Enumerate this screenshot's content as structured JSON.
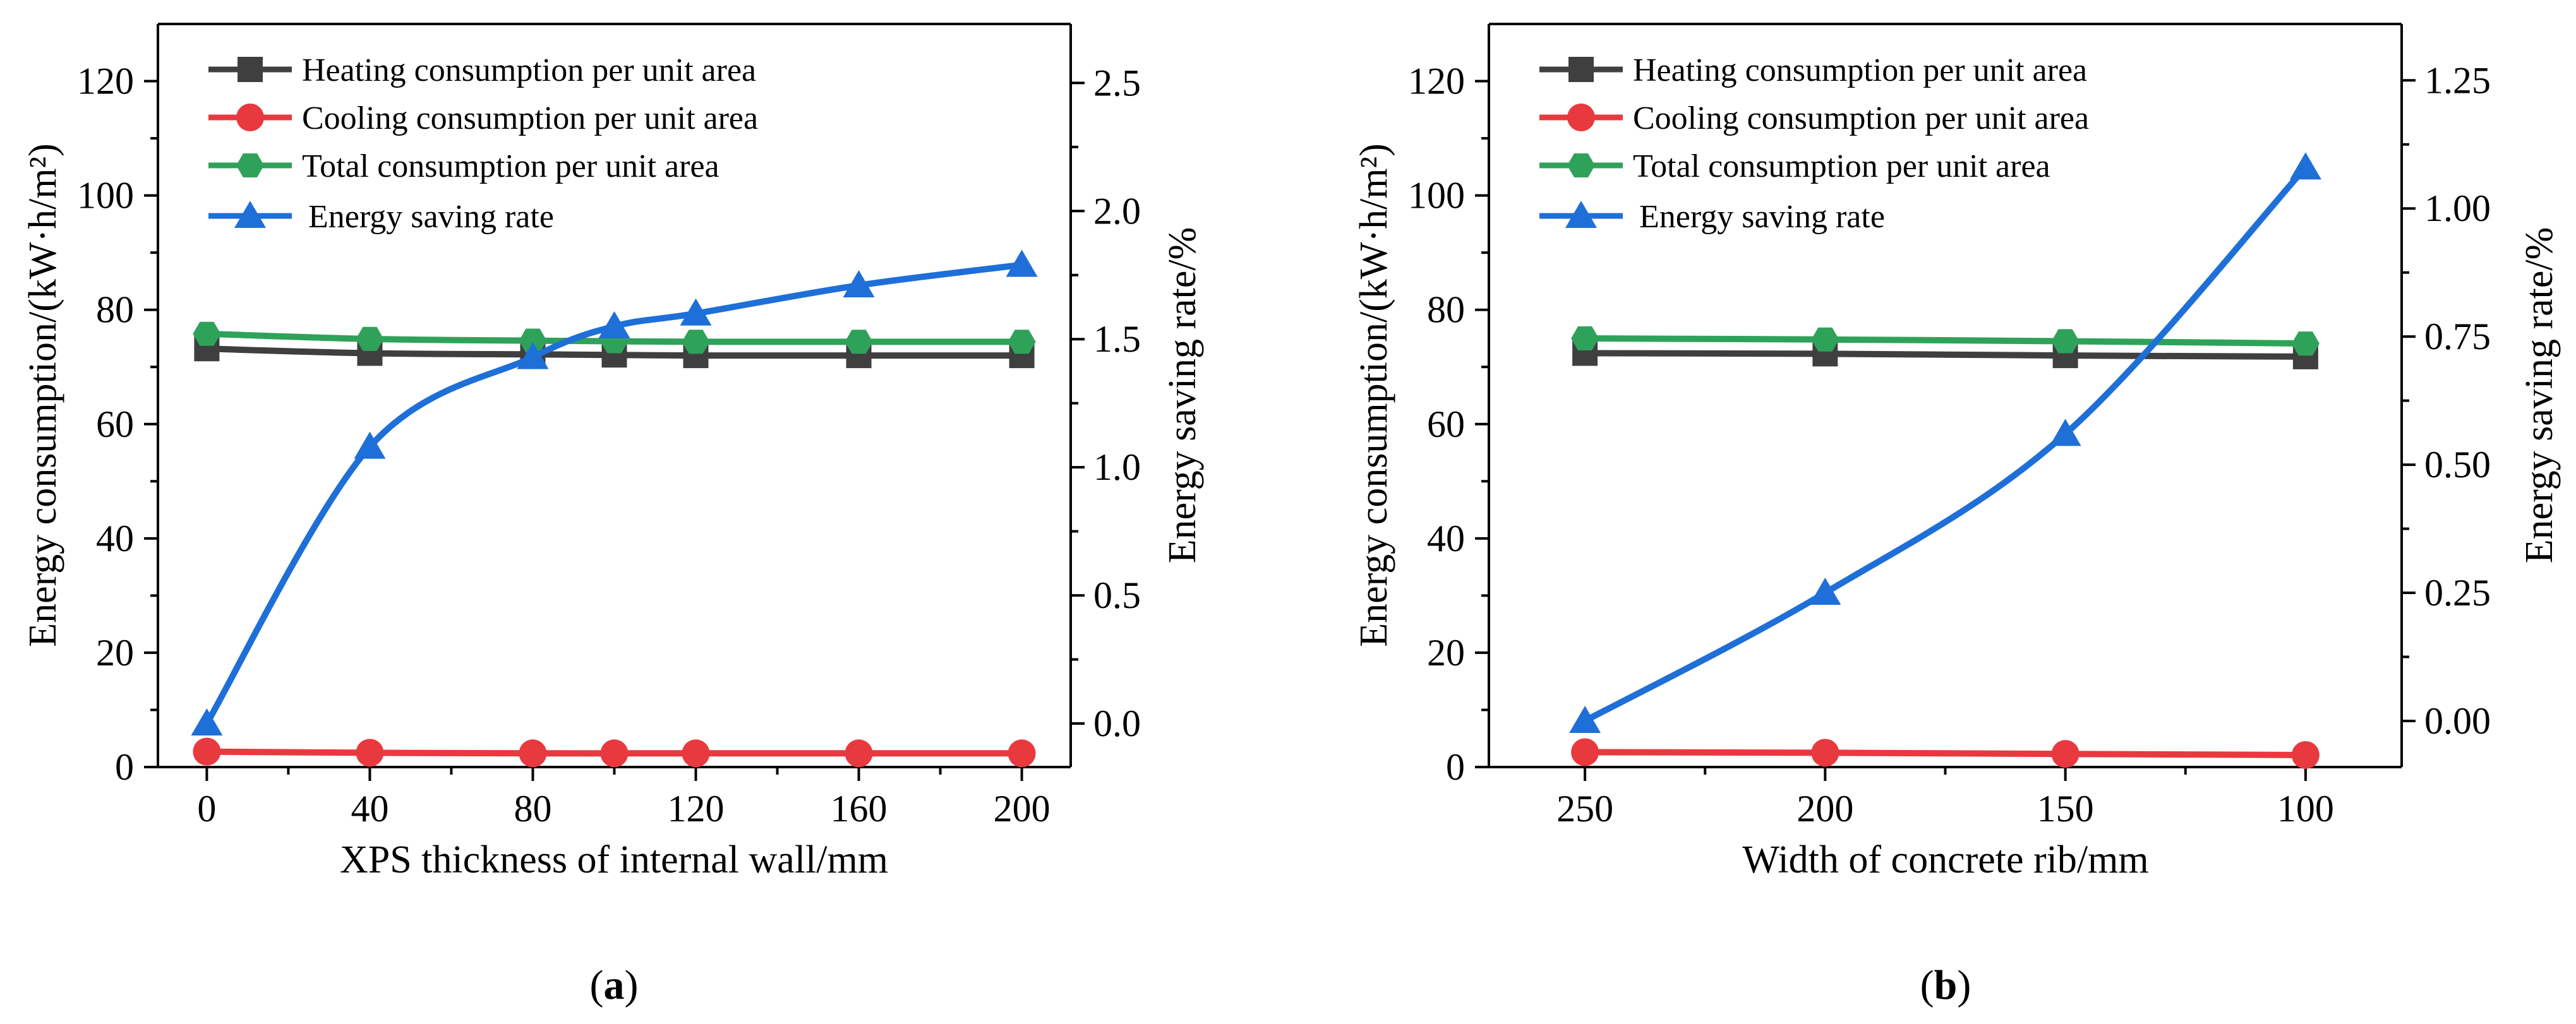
{
  "chart_data": [
    {
      "type": "line",
      "panel_label": {
        "open": "(",
        "letter": "a",
        "close": ")"
      },
      "xlabel": "XPS thickness of internal wall/mm",
      "ylabel": "Energy consumption/(kW·h/m²)",
      "ylabel2": "Energy saving rate/%",
      "x": [
        0,
        40,
        80,
        100,
        120,
        160,
        200
      ],
      "xlim": [
        -12,
        212
      ],
      "x_reversed": false,
      "xticks": [
        0,
        40,
        80,
        120,
        160,
        200
      ],
      "xtick_labels": [
        "0",
        "40",
        "80",
        "120",
        "160",
        "200"
      ],
      "ylim": [
        0,
        130
      ],
      "yticks": [
        0,
        20,
        40,
        60,
        80,
        100,
        120
      ],
      "ytick_labels": [
        "0",
        "20",
        "40",
        "60",
        "80",
        "100",
        "120"
      ],
      "ylim2": [
        -0.17,
        2.73
      ],
      "yticks2": [
        0,
        0.5,
        1,
        1.5,
        2,
        2.5
      ],
      "ytick2_labels": [
        "0.0",
        "0.5",
        "1.0",
        "1.5",
        "2.0",
        "2.5"
      ],
      "series": [
        {
          "name": "Heating consumption per unit area",
          "axis": "left",
          "marker": "square",
          "color": "#3f3f3f",
          "values": [
            73.2,
            72.4,
            72.2,
            72.1,
            72.0,
            72.0,
            72.0
          ]
        },
        {
          "name": "Cooling consumption per unit area",
          "axis": "left",
          "marker": "circle",
          "color": "#e8393f",
          "values": [
            2.7,
            2.5,
            2.4,
            2.4,
            2.4,
            2.4,
            2.4
          ]
        },
        {
          "name": "Total consumption per unit area",
          "axis": "left",
          "marker": "hexagon",
          "color": "#2fa25a",
          "values": [
            75.8,
            74.9,
            74.6,
            74.5,
            74.4,
            74.4,
            74.4
          ]
        },
        {
          "name": "Energy saving rate",
          "axis": "right",
          "marker": "triangle",
          "color": "#1e6fd8",
          "values": [
            0.0,
            1.08,
            1.43,
            1.55,
            1.6,
            1.71,
            1.79
          ]
        }
      ]
    },
    {
      "type": "line",
      "panel_label": {
        "open": "(",
        "letter": "b",
        "close": ")"
      },
      "xlabel": "Width of concrete rib/mm",
      "ylabel": "Energy consumption/(kW·h/m²)",
      "ylabel2": "Energy saving rate/%",
      "x": [
        250,
        200,
        150,
        100
      ],
      "xlim": [
        270,
        80
      ],
      "x_reversed": true,
      "xticks": [
        250,
        200,
        150,
        100
      ],
      "xtick_labels": [
        "250",
        "200",
        "150",
        "100"
      ],
      "ylim": [
        0,
        130
      ],
      "yticks": [
        0,
        20,
        40,
        60,
        80,
        100,
        120
      ],
      "ytick_labels": [
        "0",
        "20",
        "40",
        "60",
        "80",
        "100",
        "120"
      ],
      "ylim2": [
        -0.09,
        1.36
      ],
      "yticks2": [
        0,
        0.25,
        0.5,
        0.75,
        1.0,
        1.25
      ],
      "ytick2_labels": [
        "0.00",
        "0.25",
        "0.50",
        "0.75",
        "1.00",
        "1.25"
      ],
      "series": [
        {
          "name": "Heating consumption per unit area",
          "axis": "left",
          "marker": "square",
          "color": "#3f3f3f",
          "values": [
            72.4,
            72.3,
            72.0,
            71.8
          ]
        },
        {
          "name": "Cooling consumption per unit area",
          "axis": "left",
          "marker": "circle",
          "color": "#e8393f",
          "values": [
            2.6,
            2.5,
            2.3,
            2.1
          ]
        },
        {
          "name": "Total consumption per unit area",
          "axis": "left",
          "marker": "hexagon",
          "color": "#2fa25a",
          "values": [
            75.0,
            74.8,
            74.5,
            74.1
          ]
        },
        {
          "name": "Energy saving rate",
          "axis": "right",
          "marker": "triangle",
          "color": "#1e6fd8",
          "values": [
            0.0,
            0.25,
            0.56,
            1.08
          ]
        }
      ]
    }
  ]
}
